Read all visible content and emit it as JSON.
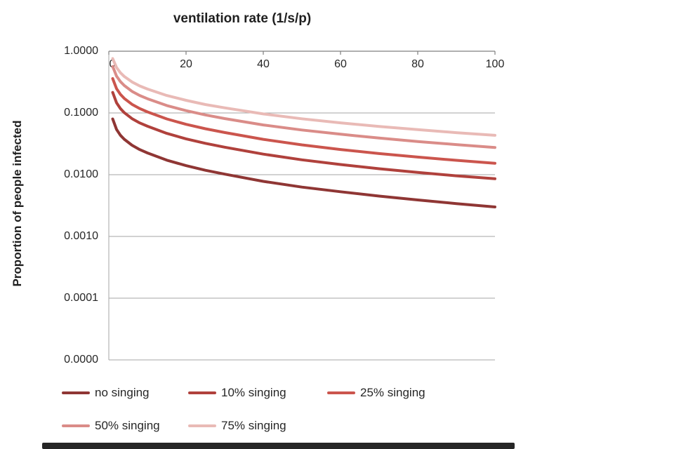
{
  "chart_data": {
    "type": "line",
    "title": "ventilation rate (1/s/p)",
    "xlabel": "ventilation rate (1/s/p)",
    "ylabel": "Proportion of people infected",
    "x_axis_position": "top",
    "y_scale": "log",
    "xlim": [
      0,
      100
    ],
    "grid": "horizontal",
    "legend_position": "bottom",
    "x_ticks": [
      "0",
      "20",
      "40",
      "60",
      "80",
      "100"
    ],
    "y_tick_labels": [
      "1.0000",
      "0.1000",
      "0.0100",
      "0.0010",
      "0.0001",
      "0.0000"
    ],
    "y_tick_values": [
      1,
      0.1,
      0.01,
      0.001,
      0.0001,
      1e-05
    ],
    "x": [
      1,
      2,
      3,
      4,
      6,
      8,
      10,
      15,
      20,
      25,
      30,
      40,
      50,
      60,
      70,
      80,
      90,
      100
    ],
    "series": [
      {
        "name": "no singing",
        "color": "#8f3634",
        "values": [
          0.08,
          0.054,
          0.0435,
          0.0375,
          0.03,
          0.0255,
          0.0225,
          0.0172,
          0.014,
          0.0118,
          0.0102,
          0.0078,
          0.0063,
          0.0053,
          0.0045,
          0.0039,
          0.0034,
          0.003
        ]
      },
      {
        "name": "10% singing",
        "color": "#b0413c",
        "values": [
          0.215,
          0.146,
          0.118,
          0.101,
          0.081,
          0.069,
          0.061,
          0.0467,
          0.0381,
          0.0322,
          0.0279,
          0.0215,
          0.0174,
          0.0146,
          0.0125,
          0.0109,
          0.0096,
          0.0086
        ]
      },
      {
        "name": "25% singing",
        "color": "#cb554d",
        "values": [
          0.36,
          0.247,
          0.2,
          0.172,
          0.138,
          0.118,
          0.104,
          0.08,
          0.0655,
          0.0555,
          0.0482,
          0.0374,
          0.0304,
          0.0256,
          0.022,
          0.0193,
          0.0171,
          0.0153
        ]
      },
      {
        "name": "50% singing",
        "color": "#da8c88",
        "values": [
          0.565,
          0.395,
          0.322,
          0.278,
          0.224,
          0.192,
          0.17,
          0.132,
          0.109,
          0.093,
          0.0812,
          0.064,
          0.053,
          0.0452,
          0.0392,
          0.0345,
          0.0307,
          0.0276
        ]
      },
      {
        "name": "75% singing",
        "color": "#e9bab6",
        "values": [
          0.76,
          0.545,
          0.448,
          0.39,
          0.318,
          0.274,
          0.244,
          0.192,
          0.16,
          0.137,
          0.121,
          0.0965,
          0.0805,
          0.0692,
          0.0605,
          0.0536,
          0.048,
          0.0434
        ]
      }
    ]
  }
}
